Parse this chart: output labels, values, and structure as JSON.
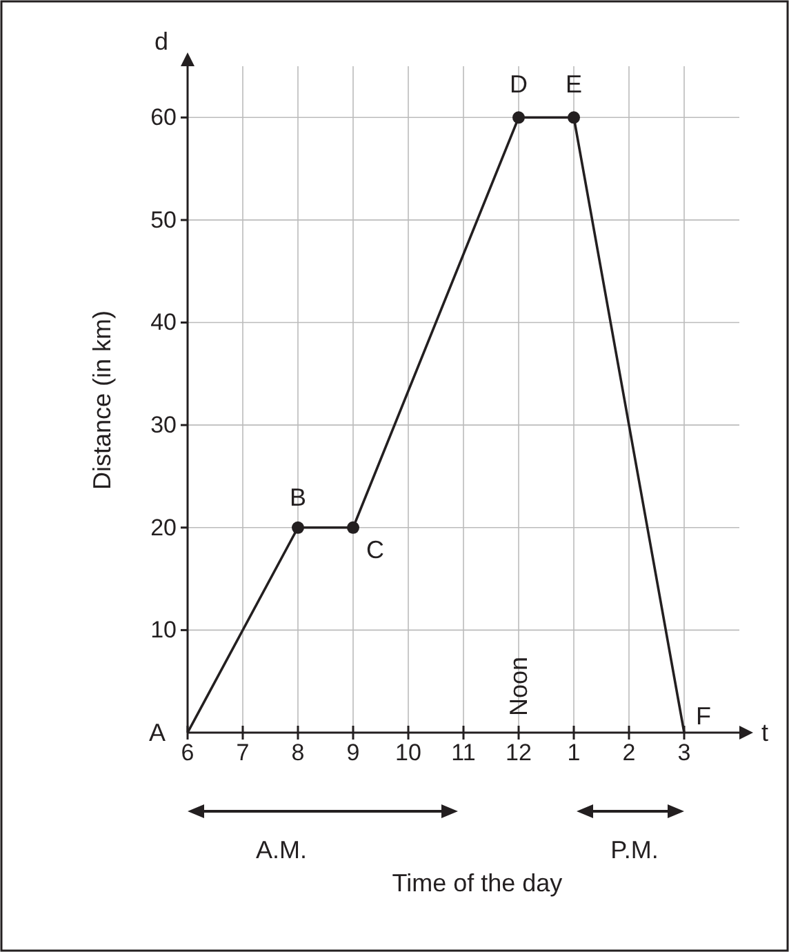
{
  "chart_data": {
    "type": "line",
    "xlabel": "Time of the day",
    "ylabel": "Distance (in km)",
    "categories": [
      "6",
      "7",
      "8",
      "9",
      "10",
      "11",
      "12",
      "1",
      "2",
      "3"
    ],
    "ylim": [
      0,
      65
    ],
    "yticks": [
      10,
      20,
      30,
      40,
      50,
      60
    ],
    "grid": true,
    "series": [
      {
        "color": "#231f20",
        "marker": "none",
        "x": [
          "6",
          "8",
          "9",
          "12",
          "1",
          "3"
        ],
        "values": [
          0,
          20,
          20,
          60,
          60,
          0
        ]
      },
      {
        "type": "scatter",
        "color": "#231f20",
        "marker": "circle",
        "x": [
          "8",
          "9",
          "12",
          "1"
        ],
        "values": [
          20,
          20,
          60,
          60
        ]
      }
    ],
    "annotations": [
      {
        "text": "A",
        "x": "6",
        "y": 0
      },
      {
        "text": "B",
        "x": "8",
        "y": 20
      },
      {
        "text": "C",
        "x": "9",
        "y": 20
      },
      {
        "text": "D",
        "x": "12",
        "y": 60
      },
      {
        "text": "E",
        "x": "1",
        "y": 60
      },
      {
        "text": "F",
        "x": "3",
        "y": 0
      },
      "Noon",
      "d",
      "t",
      "A.M.",
      "P.M."
    ]
  }
}
